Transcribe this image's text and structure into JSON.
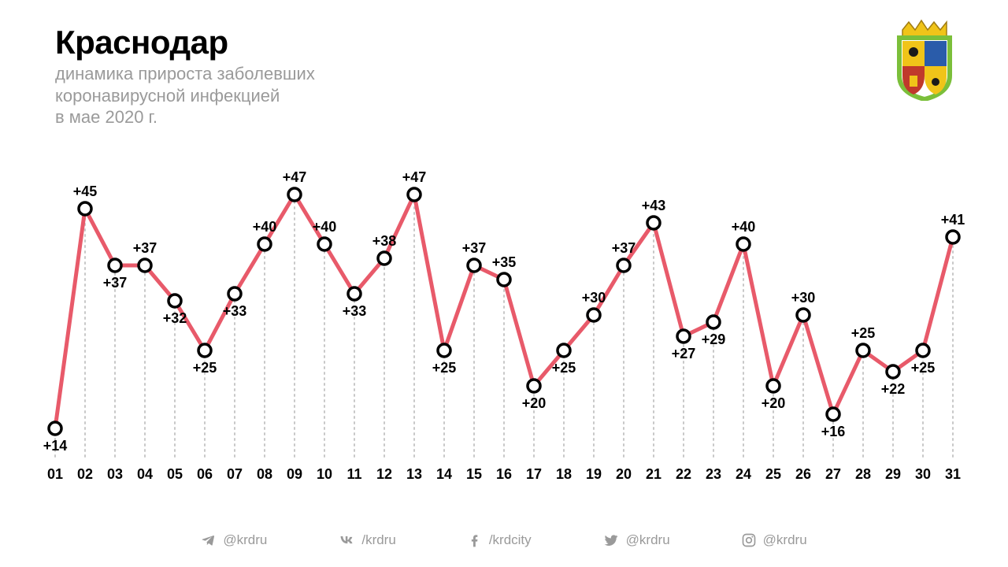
{
  "header": {
    "title": "Краснодар",
    "subtitle_line1": "динамика прироста заболевших",
    "subtitle_line2": "коронавирусной инфекцией",
    "subtitle_line3": "в мае 2020 г."
  },
  "chart": {
    "type": "line",
    "days": [
      "01",
      "02",
      "03",
      "04",
      "05",
      "06",
      "07",
      "08",
      "09",
      "10",
      "11",
      "12",
      "13",
      "14",
      "15",
      "16",
      "17",
      "18",
      "19",
      "20",
      "21",
      "22",
      "23",
      "24",
      "25",
      "26",
      "27",
      "28",
      "29",
      "30",
      "31"
    ],
    "values": [
      14,
      45,
      37,
      37,
      32,
      25,
      33,
      40,
      47,
      40,
      33,
      38,
      47,
      25,
      37,
      35,
      20,
      25,
      30,
      37,
      43,
      27,
      29,
      40,
      20,
      30,
      16,
      25,
      22,
      25,
      41
    ],
    "label_positions": [
      "below",
      "above",
      "below",
      "above",
      "below",
      "below",
      "below",
      "above",
      "above",
      "above",
      "below",
      "above",
      "above",
      "below",
      "above",
      "above",
      "below",
      "below",
      "above",
      "above",
      "above",
      "below",
      "below",
      "above",
      "below",
      "above",
      "below",
      "above",
      "below",
      "below",
      "above"
    ],
    "line_color": "#e85a6a",
    "line_width": 5,
    "marker_stroke": "#000000",
    "marker_fill": "#ffffff",
    "marker_radius": 8,
    "marker_stroke_width": 3.5,
    "dotted_line_color": "#c8c8c8",
    "dotted_line_width": 2,
    "dotted_dash": "2 5",
    "background_color": "#ffffff",
    "ylim": [
      10,
      50
    ],
    "label_fontsize": 18,
    "tick_fontsize": 18,
    "title_fontsize": 42,
    "subtitle_fontsize": 22,
    "subtitle_color": "#9a9a9a"
  },
  "coat_of_arms": {
    "crown_color": "#f0c419",
    "shield_border": "#7bbf3a",
    "q1": "#f0c419",
    "q2": "#2a5caa",
    "q3": "#c0392b",
    "q4": "#f0c419",
    "eagle_color": "#1a1a1a"
  },
  "socials": {
    "items": [
      {
        "icon": "telegram-icon",
        "handle": "@krdru"
      },
      {
        "icon": "vk-icon",
        "handle": "/krdru"
      },
      {
        "icon": "facebook-icon",
        "handle": "/krdcity"
      },
      {
        "icon": "twitter-icon",
        "handle": "@krdru"
      },
      {
        "icon": "instagram-icon",
        "handle": "@krdru"
      }
    ],
    "color": "#9a9a9a",
    "fontsize": 17
  }
}
